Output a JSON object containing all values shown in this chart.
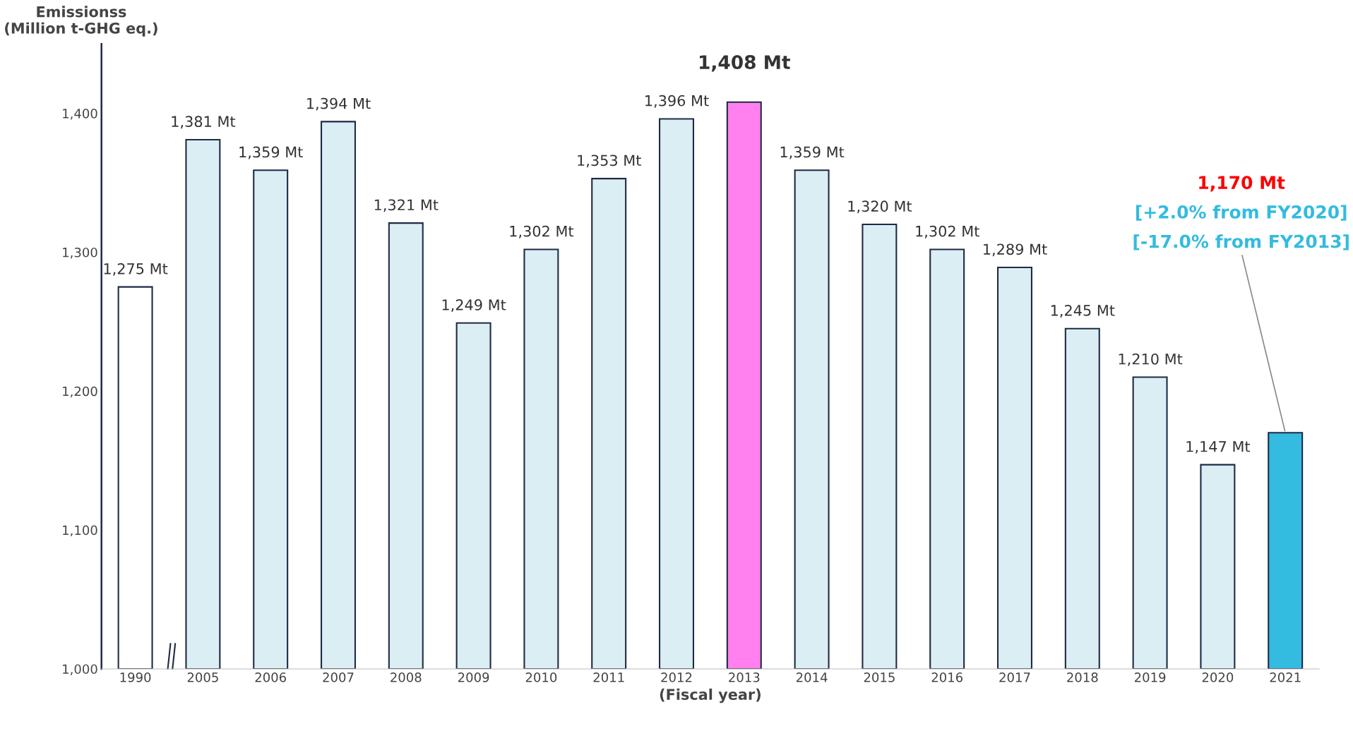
{
  "chart_data": {
    "type": "bar",
    "ylabel": "Emissionss\n(Million t-GHG eq.)",
    "xlabel": "(Fiscal year)",
    "categories": [
      "1990",
      "2005",
      "2006",
      "2007",
      "2008",
      "2009",
      "2010",
      "2011",
      "2012",
      "2013",
      "2014",
      "2015",
      "2016",
      "2017",
      "2018",
      "2019",
      "2020",
      "2021"
    ],
    "values": [
      1275,
      1381,
      1359,
      1394,
      1321,
      1249,
      1302,
      1353,
      1396,
      1408,
      1359,
      1320,
      1302,
      1289,
      1245,
      1210,
      1147,
      1170
    ],
    "colors": [
      "#ffffff",
      "#daeef3",
      "#daeef3",
      "#daeef3",
      "#daeef3",
      "#daeef3",
      "#daeef3",
      "#daeef3",
      "#daeef3",
      "#ff80ee",
      "#daeef3",
      "#daeef3",
      "#daeef3",
      "#daeef3",
      "#daeef3",
      "#daeef3",
      "#daeef3",
      "#33bbe0"
    ],
    "value_labels": [
      "1,275 Mt",
      "1,381 Mt",
      "1,359 Mt",
      "1,394 Mt",
      "1,321 Mt",
      "1,249 Mt",
      "1,302 Mt",
      "1,353 Mt",
      "1,396 Mt",
      "1,408 Mt",
      "1,359 Mt",
      "1,320 Mt",
      "1,302 Mt",
      "1,289 Mt",
      "1,245 Mt",
      "1,210 Mt",
      "1,147 Mt",
      null
    ],
    "annotations": [
      "1,170 Mt",
      "[+2.0% from FY2020]",
      {
        "text": "[-17.0% from FY2013]",
        "x": "2021",
        "y": 1170
      }
    ],
    "ylim": [
      1000,
      1450
    ],
    "yticks": [
      {
        "value": 1000,
        "label": "1,000"
      },
      {
        "value": 1100,
        "label": "1,100"
      },
      {
        "value": 1200,
        "label": "1,200"
      },
      {
        "value": 1300,
        "label": "1,300"
      },
      {
        "value": 1400,
        "label": "1,400"
      }
    ],
    "grid": false
  }
}
